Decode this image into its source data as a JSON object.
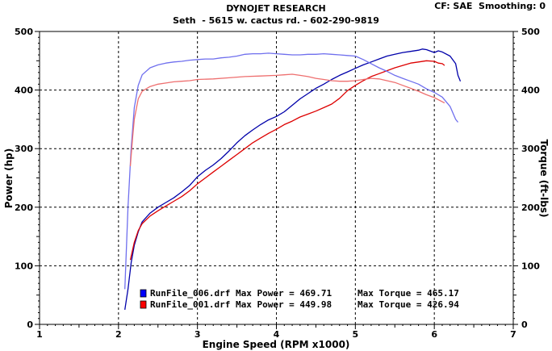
{
  "header": {
    "title": "DYNOJET RESEARCH",
    "subtitle": "Seth  - 5615 w. cactus rd. - 602-290-9819",
    "cf_smoothing": "CF: SAE  Smoothing: 0"
  },
  "chart_data": {
    "type": "line",
    "xlabel": "Engine Speed (RPM x1000)",
    "ylabel_left": "Power (hp)",
    "ylabel_right": "Torque (ft-lbs)",
    "xlim": [
      1,
      7
    ],
    "ylim_left": [
      0,
      500
    ],
    "ylim_right": [
      0,
      500
    ],
    "x_ticks": [
      "1",
      "2",
      "3",
      "4",
      "5",
      "6",
      "7"
    ],
    "y_ticks_left": [
      "0",
      "100",
      "200",
      "300",
      "400",
      "500"
    ],
    "y_ticks_right": [
      "0",
      "100",
      "200",
      "300",
      "400",
      "500"
    ],
    "grid": true,
    "legend": [
      {
        "file": "RunFile_006.drf",
        "max_power": "Max Power = 469.71",
        "max_torque": "Max Torque = 465.17",
        "color": "#0000ff"
      },
      {
        "file": "RunFile_001.drf",
        "max_power": "Max Power = 449.98",
        "max_torque": "Max Torque = 426.94",
        "color": "#ff0000"
      }
    ],
    "series": [
      {
        "name": "RunFile_006.drf Power",
        "color": "#0000aa",
        "points": [
          [
            2.08,
            25
          ],
          [
            2.12,
            60
          ],
          [
            2.16,
            105
          ],
          [
            2.2,
            135
          ],
          [
            2.25,
            158
          ],
          [
            2.3,
            175
          ],
          [
            2.4,
            190
          ],
          [
            2.5,
            200
          ],
          [
            2.6,
            208
          ],
          [
            2.7,
            216
          ],
          [
            2.8,
            226
          ],
          [
            2.9,
            237
          ],
          [
            3.0,
            252
          ],
          [
            3.1,
            263
          ],
          [
            3.2,
            272
          ],
          [
            3.3,
            283
          ],
          [
            3.4,
            296
          ],
          [
            3.5,
            310
          ],
          [
            3.6,
            322
          ],
          [
            3.7,
            332
          ],
          [
            3.8,
            341
          ],
          [
            3.9,
            349
          ],
          [
            4.0,
            355
          ],
          [
            4.1,
            363
          ],
          [
            4.2,
            374
          ],
          [
            4.3,
            385
          ],
          [
            4.4,
            394
          ],
          [
            4.5,
            403
          ],
          [
            4.6,
            410
          ],
          [
            4.7,
            418
          ],
          [
            4.8,
            425
          ],
          [
            4.9,
            431
          ],
          [
            5.0,
            437
          ],
          [
            5.1,
            443
          ],
          [
            5.2,
            448
          ],
          [
            5.3,
            453
          ],
          [
            5.4,
            458
          ],
          [
            5.5,
            461
          ],
          [
            5.6,
            464
          ],
          [
            5.7,
            466
          ],
          [
            5.8,
            468
          ],
          [
            5.85,
            470
          ],
          [
            5.9,
            469
          ],
          [
            6.0,
            464
          ],
          [
            6.05,
            467
          ],
          [
            6.1,
            465
          ],
          [
            6.2,
            458
          ],
          [
            6.27,
            445
          ],
          [
            6.3,
            425
          ],
          [
            6.33,
            415
          ]
        ]
      },
      {
        "name": "RunFile_001.drf Power",
        "color": "#dd0000",
        "points": [
          [
            2.15,
            110
          ],
          [
            2.2,
            140
          ],
          [
            2.25,
            160
          ],
          [
            2.3,
            172
          ],
          [
            2.4,
            185
          ],
          [
            2.5,
            194
          ],
          [
            2.6,
            202
          ],
          [
            2.7,
            210
          ],
          [
            2.8,
            218
          ],
          [
            2.9,
            228
          ],
          [
            3.0,
            240
          ],
          [
            3.1,
            250
          ],
          [
            3.2,
            260
          ],
          [
            3.3,
            270
          ],
          [
            3.4,
            280
          ],
          [
            3.5,
            290
          ],
          [
            3.6,
            300
          ],
          [
            3.7,
            310
          ],
          [
            3.8,
            318
          ],
          [
            3.9,
            326
          ],
          [
            4.0,
            333
          ],
          [
            4.1,
            341
          ],
          [
            4.2,
            347
          ],
          [
            4.3,
            354
          ],
          [
            4.4,
            359
          ],
          [
            4.5,
            364
          ],
          [
            4.6,
            370
          ],
          [
            4.7,
            376
          ],
          [
            4.8,
            386
          ],
          [
            4.9,
            399
          ],
          [
            5.0,
            408
          ],
          [
            5.1,
            416
          ],
          [
            5.2,
            423
          ],
          [
            5.3,
            428
          ],
          [
            5.4,
            433
          ],
          [
            5.5,
            438
          ],
          [
            5.6,
            442
          ],
          [
            5.7,
            446
          ],
          [
            5.8,
            448
          ],
          [
            5.9,
            450
          ],
          [
            6.0,
            449
          ],
          [
            6.05,
            446
          ],
          [
            6.1,
            445
          ],
          [
            6.13,
            442
          ]
        ]
      },
      {
        "name": "RunFile_006.drf Torque",
        "color": "#6f6fee",
        "points": [
          [
            2.08,
            60
          ],
          [
            2.12,
            200
          ],
          [
            2.16,
            300
          ],
          [
            2.2,
            370
          ],
          [
            2.25,
            408
          ],
          [
            2.3,
            426
          ],
          [
            2.4,
            438
          ],
          [
            2.5,
            443
          ],
          [
            2.6,
            446
          ],
          [
            2.7,
            448
          ],
          [
            2.8,
            449
          ],
          [
            2.9,
            451
          ],
          [
            3.0,
            452
          ],
          [
            3.1,
            453
          ],
          [
            3.2,
            453
          ],
          [
            3.3,
            455
          ],
          [
            3.4,
            456
          ],
          [
            3.5,
            458
          ],
          [
            3.6,
            461
          ],
          [
            3.7,
            462
          ],
          [
            3.8,
            462
          ],
          [
            3.9,
            463
          ],
          [
            4.0,
            462
          ],
          [
            4.1,
            461
          ],
          [
            4.2,
            460
          ],
          [
            4.3,
            460
          ],
          [
            4.4,
            461
          ],
          [
            4.5,
            461
          ],
          [
            4.6,
            462
          ],
          [
            4.7,
            461
          ],
          [
            4.8,
            460
          ],
          [
            4.9,
            459
          ],
          [
            5.0,
            458
          ],
          [
            5.1,
            452
          ],
          [
            5.2,
            445
          ],
          [
            5.3,
            438
          ],
          [
            5.4,
            432
          ],
          [
            5.5,
            425
          ],
          [
            5.6,
            420
          ],
          [
            5.7,
            415
          ],
          [
            5.8,
            410
          ],
          [
            5.9,
            402
          ],
          [
            6.0,
            396
          ],
          [
            6.1,
            388
          ],
          [
            6.2,
            372
          ],
          [
            6.27,
            350
          ],
          [
            6.3,
            345
          ]
        ]
      },
      {
        "name": "RunFile_001.drf Torque",
        "color": "#ee6f6f",
        "points": [
          [
            2.15,
            270
          ],
          [
            2.18,
            320
          ],
          [
            2.2,
            350
          ],
          [
            2.25,
            385
          ],
          [
            2.3,
            398
          ],
          [
            2.4,
            406
          ],
          [
            2.5,
            410
          ],
          [
            2.6,
            412
          ],
          [
            2.7,
            414
          ],
          [
            2.8,
            415
          ],
          [
            2.9,
            416
          ],
          [
            3.0,
            418
          ],
          [
            3.2,
            419
          ],
          [
            3.4,
            421
          ],
          [
            3.6,
            423
          ],
          [
            3.8,
            424
          ],
          [
            4.0,
            425
          ],
          [
            4.1,
            426
          ],
          [
            4.2,
            427
          ],
          [
            4.3,
            425
          ],
          [
            4.4,
            423
          ],
          [
            4.5,
            420
          ],
          [
            4.6,
            418
          ],
          [
            4.7,
            416
          ],
          [
            4.8,
            415
          ],
          [
            4.9,
            415
          ],
          [
            5.0,
            416
          ],
          [
            5.1,
            418
          ],
          [
            5.2,
            420
          ],
          [
            5.3,
            419
          ],
          [
            5.4,
            416
          ],
          [
            5.5,
            413
          ],
          [
            5.6,
            408
          ],
          [
            5.7,
            403
          ],
          [
            5.8,
            398
          ],
          [
            5.9,
            392
          ],
          [
            6.0,
            387
          ],
          [
            6.1,
            380
          ],
          [
            6.13,
            378
          ]
        ]
      }
    ]
  }
}
